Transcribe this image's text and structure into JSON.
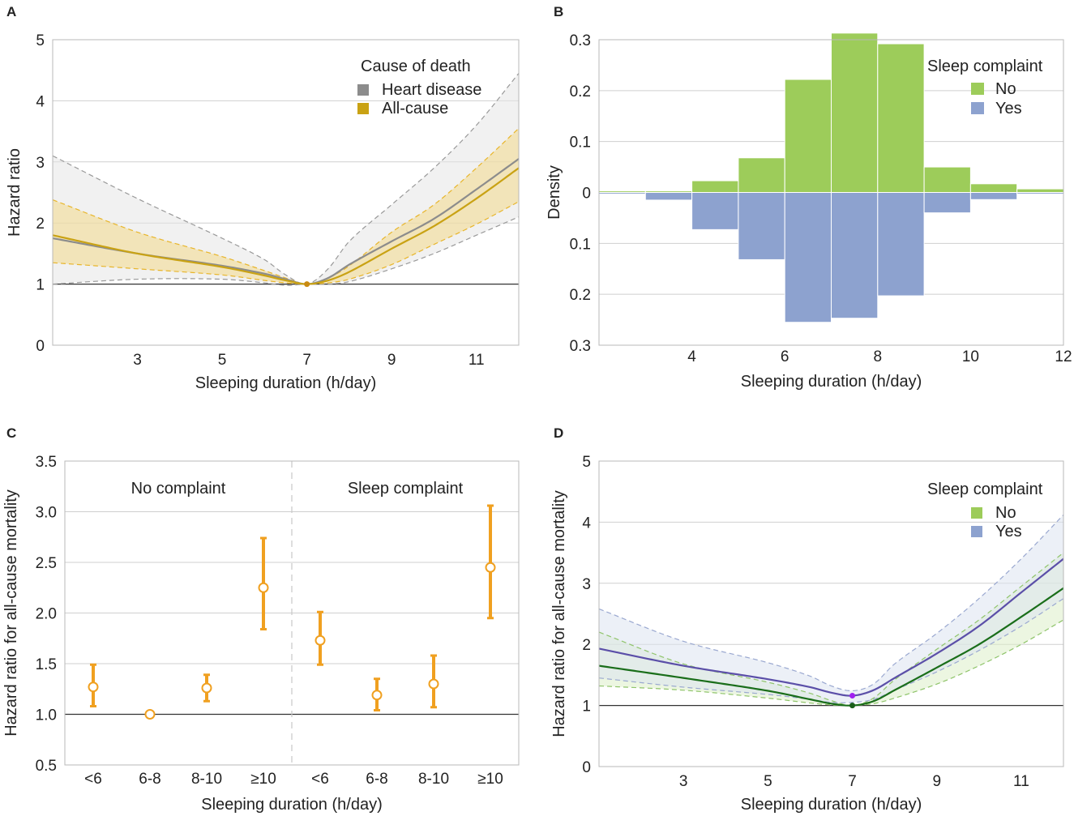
{
  "chart_data": [
    {
      "panel": "A",
      "type": "line",
      "xlabel": "Sleeping duration (h/day)",
      "ylabel": "Hazard ratio",
      "xlim": [
        1,
        12
      ],
      "ylim": [
        0,
        5
      ],
      "xticks": [
        3,
        5,
        7,
        9,
        11
      ],
      "yticks": [
        0,
        1,
        2,
        3,
        4,
        5
      ],
      "reference_line": 1,
      "legend_title": "Cause of death",
      "series": [
        {
          "name": "Heart disease",
          "color": "#8c8c8c",
          "band_color": "#e6e6e6",
          "bound_color": "#999999",
          "x": [
            1,
            3,
            5,
            6,
            6.5,
            7,
            7.5,
            8,
            9,
            10,
            11,
            12
          ],
          "y": [
            1.75,
            1.5,
            1.3,
            1.17,
            1.08,
            1.0,
            1.1,
            1.32,
            1.7,
            2.07,
            2.55,
            3.05
          ],
          "lower": [
            1.0,
            1.08,
            1.08,
            1.02,
            0.98,
            1.0,
            1.0,
            1.04,
            1.25,
            1.5,
            1.8,
            2.1
          ],
          "upper": [
            3.1,
            2.4,
            1.75,
            1.4,
            1.15,
            1.0,
            1.25,
            1.7,
            2.3,
            2.9,
            3.6,
            4.45
          ]
        },
        {
          "name": "All-cause",
          "color": "#c9a214",
          "band_color": "#f3d98a",
          "bound_color": "#e8b52a",
          "x": [
            1,
            3,
            5,
            6,
            6.5,
            7,
            7.5,
            8,
            9,
            10,
            11,
            12
          ],
          "y": [
            1.8,
            1.5,
            1.28,
            1.14,
            1.06,
            1.0,
            1.06,
            1.2,
            1.58,
            1.95,
            2.4,
            2.9
          ],
          "lower": [
            1.35,
            1.25,
            1.15,
            1.06,
            1.02,
            1.0,
            1.02,
            1.08,
            1.32,
            1.65,
            1.98,
            2.35
          ],
          "upper": [
            2.38,
            1.85,
            1.45,
            1.22,
            1.1,
            1.0,
            1.1,
            1.3,
            1.85,
            2.3,
            2.9,
            3.55
          ]
        }
      ],
      "point": {
        "x": 7,
        "y": 1.0
      }
    },
    {
      "panel": "B",
      "type": "bar",
      "xlabel": "Sleeping duration (h/day)",
      "ylabel": "Density",
      "xlim": [
        2,
        12
      ],
      "ylim": [
        -0.3,
        0.3
      ],
      "xticks": [
        4,
        6,
        8,
        10,
        12
      ],
      "ytick_values": [
        -0.3,
        -0.2,
        -0.1,
        0,
        0.1,
        0.2,
        0.3
      ],
      "ytick_labels": [
        "0.3",
        "0.2",
        "0.1",
        "0",
        "0.1",
        "0.2",
        "0.3"
      ],
      "legend_title": "Sleep complaint",
      "bins": [
        [
          2,
          3
        ],
        [
          3,
          4
        ],
        [
          4,
          5
        ],
        [
          5,
          6
        ],
        [
          6,
          7
        ],
        [
          7,
          8
        ],
        [
          8,
          9
        ],
        [
          9,
          10
        ],
        [
          10,
          11
        ],
        [
          11,
          12
        ]
      ],
      "series": [
        {
          "name": "No",
          "color": "#9dcc5a",
          "direction": "up",
          "values": [
            0.003,
            0.003,
            0.023,
            0.068,
            0.222,
            0.313,
            0.292,
            0.05,
            0.017,
            0.007
          ]
        },
        {
          "name": "Yes",
          "color": "#8da2cf",
          "direction": "down",
          "values": [
            0.003,
            0.015,
            0.073,
            0.132,
            0.255,
            0.247,
            0.203,
            0.04,
            0.014,
            0.003
          ]
        }
      ]
    },
    {
      "panel": "C",
      "type": "scatter",
      "xlabel": "Sleeping duration (h/day)",
      "ylabel": "Hazard ratio for all-cause mortality",
      "ylim": [
        0.5,
        3.5
      ],
      "yticks": [
        "0.5",
        "1.0",
        "1.5",
        "2.0",
        "2.5",
        "3.0",
        "3.5"
      ],
      "reference_line": 1.0,
      "group_labels": [
        "No complaint",
        "Sleep complaint"
      ],
      "categories": [
        "<6",
        "6-8",
        "8-10",
        "≥10",
        "<6",
        "6-8",
        "8-10",
        "≥10"
      ],
      "color": "#f0a020",
      "estimates": [
        1.27,
        1.0,
        1.26,
        2.25,
        1.73,
        1.19,
        1.3,
        2.45
      ],
      "lower": [
        1.08,
        1.0,
        1.13,
        1.84,
        1.49,
        1.04,
        1.07,
        1.95
      ],
      "upper": [
        1.49,
        1.0,
        1.39,
        2.74,
        2.01,
        1.35,
        1.58,
        3.06
      ]
    },
    {
      "panel": "D",
      "type": "line",
      "xlabel": "Sleeping duration (h/day)",
      "ylabel": "Hazard ratio for all-cause mortality",
      "xlim": [
        1,
        12
      ],
      "ylim": [
        0,
        5
      ],
      "xticks": [
        3,
        5,
        7,
        9,
        11
      ],
      "yticks": [
        0,
        1,
        2,
        3,
        4,
        5
      ],
      "reference_line": 1,
      "legend_title": "Sleep complaint",
      "legend_entries": [
        {
          "name": "No",
          "color": "#9dcc5a"
        },
        {
          "name": "Yes",
          "color": "#8da2cf"
        }
      ],
      "series": [
        {
          "name": "No",
          "color": "#1a6e1a",
          "band_color": "#dcefc8",
          "bound_color": "#8fc46a",
          "x": [
            1,
            3,
            5,
            6,
            6.5,
            7,
            7.5,
            8,
            9,
            10,
            11,
            12
          ],
          "y": [
            1.65,
            1.45,
            1.24,
            1.1,
            1.03,
            1.0,
            1.07,
            1.25,
            1.62,
            2.0,
            2.45,
            2.92
          ],
          "lower": [
            1.32,
            1.25,
            1.12,
            1.04,
            1.01,
            1.0,
            1.03,
            1.12,
            1.35,
            1.65,
            2.0,
            2.4
          ],
          "upper": [
            2.2,
            1.68,
            1.38,
            1.2,
            1.08,
            1.0,
            1.12,
            1.42,
            1.92,
            2.4,
            2.95,
            3.5
          ]
        },
        {
          "name": "Yes",
          "color": "#5b4fa8",
          "band_color": "#dde3f0",
          "bound_color": "#9aa8d0",
          "x": [
            1,
            3,
            5,
            6,
            6.5,
            7,
            7.5,
            8,
            9,
            10,
            11,
            12
          ],
          "y": [
            1.93,
            1.65,
            1.43,
            1.3,
            1.21,
            1.16,
            1.25,
            1.45,
            1.85,
            2.3,
            2.85,
            3.4
          ],
          "lower": [
            1.45,
            1.3,
            1.18,
            1.1,
            1.05,
            1.05,
            1.1,
            1.25,
            1.55,
            1.9,
            2.3,
            2.75
          ],
          "upper": [
            2.58,
            2.05,
            1.7,
            1.48,
            1.32,
            1.24,
            1.35,
            1.68,
            2.18,
            2.75,
            3.4,
            4.12
          ]
        }
      ],
      "points": [
        {
          "x": 7,
          "y": 1.16,
          "color": "#a020f0"
        },
        {
          "x": 7,
          "y": 1.0,
          "color": "#1a5e1a"
        }
      ]
    }
  ]
}
